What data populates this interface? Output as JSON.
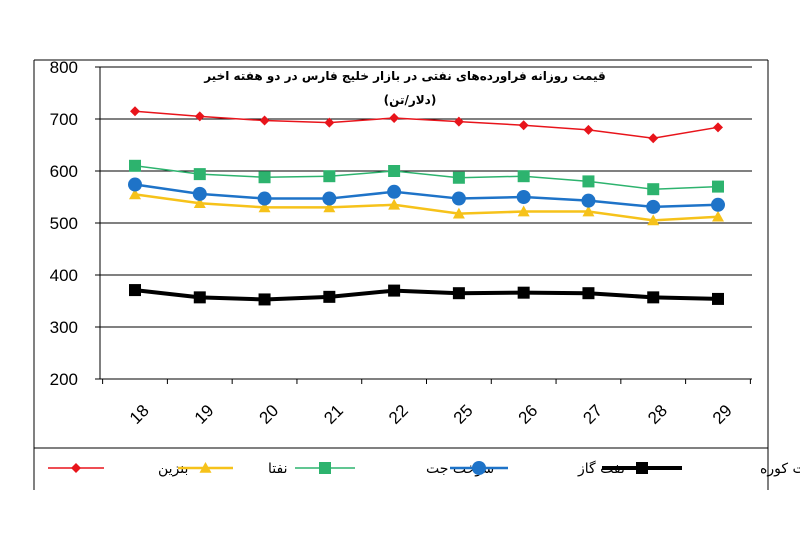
{
  "chart_data": {
    "type": "line",
    "title_lines": [
      "قیمت روزانه فراورده‌های نفتی در بازار خلیج فارس در دو هفته اخیر",
      "(دلار/تن)"
    ],
    "categories": [
      "18",
      "19",
      "20",
      "21",
      "22",
      "25",
      "26",
      "27",
      "28",
      "29"
    ],
    "ylim": [
      200,
      800
    ],
    "yticks": [
      200,
      300,
      400,
      500,
      600,
      700,
      800
    ],
    "grid": true,
    "legend_position": "bottom",
    "series": [
      {
        "name": "بنزین",
        "color": "#e8141b",
        "marker": "diamond",
        "width": 1.5,
        "values": [
          715,
          705,
          697,
          693,
          702,
          695,
          688,
          679,
          663,
          684
        ]
      },
      {
        "name": "نفتا",
        "color": "#f6c21a",
        "marker": "triangle",
        "width": 2.5,
        "values": [
          555,
          538,
          530,
          530,
          535,
          518,
          522,
          522,
          505,
          512
        ]
      },
      {
        "name": "سوخت جت",
        "color": "#2db36e",
        "marker": "square",
        "width": 1.5,
        "values": [
          610,
          594,
          588,
          590,
          600,
          587,
          590,
          580,
          565,
          570
        ]
      },
      {
        "name": "نفت گاز",
        "color": "#1e73c8",
        "marker": "circle",
        "width": 2.5,
        "values": [
          574,
          556,
          547,
          547,
          560,
          547,
          550,
          543,
          531,
          535
        ]
      },
      {
        "name": "نفت کوره",
        "color": "#000000",
        "marker": "square",
        "width": 4,
        "values": [
          371,
          357,
          353,
          358,
          370,
          365,
          366,
          365,
          357,
          354
        ]
      }
    ]
  }
}
